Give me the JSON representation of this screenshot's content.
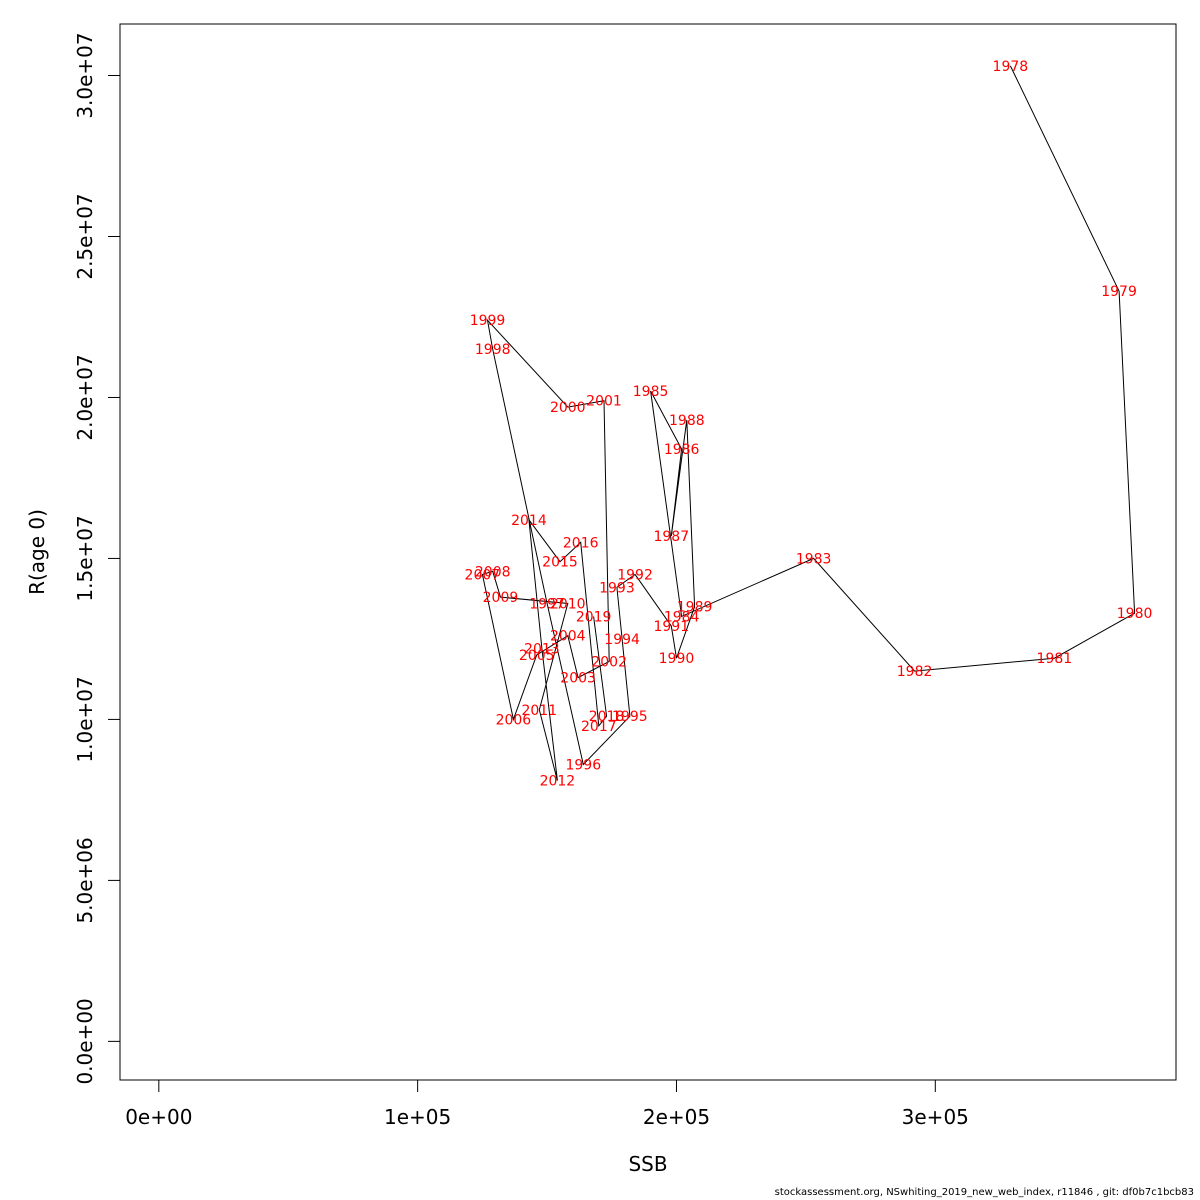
{
  "chart_data": {
    "type": "scatter",
    "title": "",
    "xlabel": "SSB",
    "ylabel": "R(age 0)",
    "xlim": [
      -15000,
      393000
    ],
    "ylim": [
      -1200000,
      31600000
    ],
    "x_ticks": [
      0,
      100000,
      200000,
      300000
    ],
    "x_tick_labels": [
      "0e+00",
      "1e+05",
      "2e+05",
      "3e+05"
    ],
    "y_ticks": [
      0,
      5000000,
      10000000,
      15000000,
      20000000,
      25000000,
      30000000
    ],
    "y_tick_labels": [
      "0.0e+00",
      "5.0e+06",
      "1.0e+07",
      "1.5e+07",
      "2.0e+07",
      "2.5e+07",
      "3.0e+07"
    ],
    "grid": false,
    "connect_points": true,
    "line_color": "#000000",
    "label_color": "#ff0000",
    "points": [
      {
        "year": "1978",
        "ssb": 329000,
        "r": 30300000
      },
      {
        "year": "1979",
        "ssb": 371000,
        "r": 23300000
      },
      {
        "year": "1980",
        "ssb": 377000,
        "r": 13300000
      },
      {
        "year": "1981",
        "ssb": 346000,
        "r": 11900000
      },
      {
        "year": "1982",
        "ssb": 292000,
        "r": 11500000
      },
      {
        "year": "1983",
        "ssb": 253000,
        "r": 15000000
      },
      {
        "year": "1984",
        "ssb": 202000,
        "r": 13200000
      },
      {
        "year": "1985",
        "ssb": 190000,
        "r": 20200000
      },
      {
        "year": "1986",
        "ssb": 202000,
        "r": 18400000
      },
      {
        "year": "1987",
        "ssb": 198000,
        "r": 15700000
      },
      {
        "year": "1988",
        "ssb": 204000,
        "r": 19300000
      },
      {
        "year": "1989",
        "ssb": 207000,
        "r": 13500000
      },
      {
        "year": "1990",
        "ssb": 200000,
        "r": 11900000
      },
      {
        "year": "1991",
        "ssb": 198000,
        "r": 12900000
      },
      {
        "year": "1992",
        "ssb": 184000,
        "r": 14500000
      },
      {
        "year": "1993",
        "ssb": 177000,
        "r": 14100000
      },
      {
        "year": "1994",
        "ssb": 179000,
        "r": 12500000
      },
      {
        "year": "1995",
        "ssb": 182000,
        "r": 10100000
      },
      {
        "year": "1996",
        "ssb": 164000,
        "r": 8600000
      },
      {
        "year": "1997",
        "ssb": 150000,
        "r": 13600000
      },
      {
        "year": "1998",
        "ssb": 129000,
        "r": 21500000
      },
      {
        "year": "1999",
        "ssb": 127000,
        "r": 22400000
      },
      {
        "year": "2000",
        "ssb": 158000,
        "r": 19700000
      },
      {
        "year": "2001",
        "ssb": 172000,
        "r": 19900000
      },
      {
        "year": "2002",
        "ssb": 174000,
        "r": 11800000
      },
      {
        "year": "2003",
        "ssb": 162000,
        "r": 11300000
      },
      {
        "year": "2004",
        "ssb": 158000,
        "r": 12600000
      },
      {
        "year": "2005",
        "ssb": 146000,
        "r": 12000000
      },
      {
        "year": "2006",
        "ssb": 137000,
        "r": 10000000
      },
      {
        "year": "2007",
        "ssb": 125000,
        "r": 14500000
      },
      {
        "year": "2008",
        "ssb": 129000,
        "r": 14600000
      },
      {
        "year": "2009",
        "ssb": 132000,
        "r": 13800000
      },
      {
        "year": "2010",
        "ssb": 158000,
        "r": 13600000
      },
      {
        "year": "2011",
        "ssb": 147000,
        "r": 10300000
      },
      {
        "year": "2012",
        "ssb": 154000,
        "r": 8100000
      },
      {
        "year": "2013",
        "ssb": 148000,
        "r": 12200000
      },
      {
        "year": "2014",
        "ssb": 143000,
        "r": 16200000
      },
      {
        "year": "2015",
        "ssb": 155000,
        "r": 14900000
      },
      {
        "year": "2016",
        "ssb": 163000,
        "r": 15500000
      },
      {
        "year": "2017",
        "ssb": 170000,
        "r": 9800000
      },
      {
        "year": "2018",
        "ssb": 173000,
        "r": 10100000
      },
      {
        "year": "2019",
        "ssb": 168000,
        "r": 13200000
      }
    ]
  },
  "footer": {
    "credit": "stockassessment.org, NSwhiting_2019_new_web_index, r11846 , git: df0b7c1bcb83"
  }
}
